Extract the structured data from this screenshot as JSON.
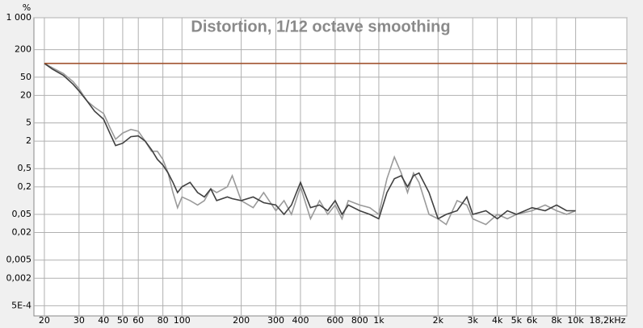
{
  "chart_data": {
    "type": "line",
    "title": "Distortion, 1/12 octave smoothing",
    "ylabel": "%",
    "xscale": "log",
    "yscale": "log",
    "grid": true,
    "xlim": [
      17.7,
      18200
    ],
    "ylim": [
      0.0003,
      1000
    ],
    "xticks": [
      20,
      30,
      40,
      50,
      60,
      80,
      100,
      200,
      300,
      400,
      600,
      800,
      {
        "value": 1000,
        "label": "1k"
      },
      {
        "value": 2000,
        "label": "2k"
      },
      {
        "value": 3000,
        "label": "3k"
      },
      {
        "value": 4000,
        "label": "4k"
      },
      {
        "value": 5000,
        "label": "5k"
      },
      {
        "value": 6000,
        "label": "6k"
      },
      {
        "value": 8000,
        "label": "8k"
      },
      {
        "value": 10000,
        "label": "10k"
      },
      {
        "value": 18200,
        "label": "18,2kHz"
      }
    ],
    "yticks": [
      {
        "value": 1000,
        "label": "1 000"
      },
      200,
      50,
      20,
      5,
      2,
      {
        "value": 0.5,
        "label": "0,5"
      },
      {
        "value": 0.2,
        "label": "0,2"
      },
      {
        "value": 0.05,
        "label": "0,05"
      },
      {
        "value": 0.02,
        "label": "0,02"
      },
      {
        "value": 0.005,
        "label": "0,005"
      },
      {
        "value": 0.002,
        "label": "0,002"
      },
      {
        "value": 0.0005,
        "label": "5E-4"
      }
    ],
    "x": [
      20,
      22,
      25,
      28,
      30,
      33,
      36,
      40,
      43,
      46,
      50,
      55,
      60,
      65,
      70,
      75,
      80,
      85,
      90,
      95,
      100,
      110,
      120,
      130,
      140,
      150,
      170,
      180,
      200,
      230,
      260,
      300,
      330,
      360,
      400,
      450,
      500,
      550,
      600,
      650,
      700,
      800,
      900,
      1000,
      1100,
      1200,
      1300,
      1400,
      1500,
      1600,
      1800,
      2000,
      2200,
      2500,
      2800,
      3000,
      3500,
      4000,
      4500,
      5000,
      6000,
      7000,
      8000,
      9000,
      10000
    ],
    "series": [
      {
        "color": "#9a9a9a",
        "values": [
          100,
          80,
          60,
          40,
          28,
          15,
          11,
          8,
          4,
          2.2,
          3,
          3.6,
          3.3,
          2,
          1.2,
          1.2,
          0.8,
          0.4,
          0.15,
          0.07,
          0.12,
          0.1,
          0.08,
          0.1,
          0.18,
          0.15,
          0.2,
          0.35,
          0.1,
          0.07,
          0.15,
          0.06,
          0.1,
          0.05,
          0.2,
          0.04,
          0.1,
          0.05,
          0.08,
          0.04,
          0.1,
          0.08,
          0.07,
          0.05,
          0.3,
          0.9,
          0.4,
          0.15,
          0.4,
          0.25,
          0.05,
          0.04,
          0.03,
          0.1,
          0.08,
          0.04,
          0.03,
          0.05,
          0.04,
          0.05,
          0.06,
          0.08,
          0.06,
          0.05,
          0.06
        ]
      },
      {
        "color": "#404040",
        "values": [
          100,
          75,
          55,
          35,
          25,
          15,
          9,
          6,
          3,
          1.6,
          1.8,
          2.5,
          2.6,
          2,
          1.3,
          0.8,
          0.6,
          0.4,
          0.25,
          0.15,
          0.2,
          0.25,
          0.15,
          0.12,
          0.18,
          0.1,
          0.12,
          0.11,
          0.1,
          0.12,
          0.09,
          0.08,
          0.05,
          0.08,
          0.25,
          0.07,
          0.08,
          0.06,
          0.1,
          0.05,
          0.08,
          0.06,
          0.05,
          0.04,
          0.15,
          0.3,
          0.35,
          0.2,
          0.35,
          0.4,
          0.15,
          0.04,
          0.05,
          0.06,
          0.12,
          0.05,
          0.06,
          0.04,
          0.06,
          0.05,
          0.07,
          0.06,
          0.08,
          0.06,
          0.06
        ]
      },
      {
        "color": "#a0522d",
        "x": [
          20,
          18200
        ],
        "values": [
          100,
          100
        ]
      }
    ]
  }
}
